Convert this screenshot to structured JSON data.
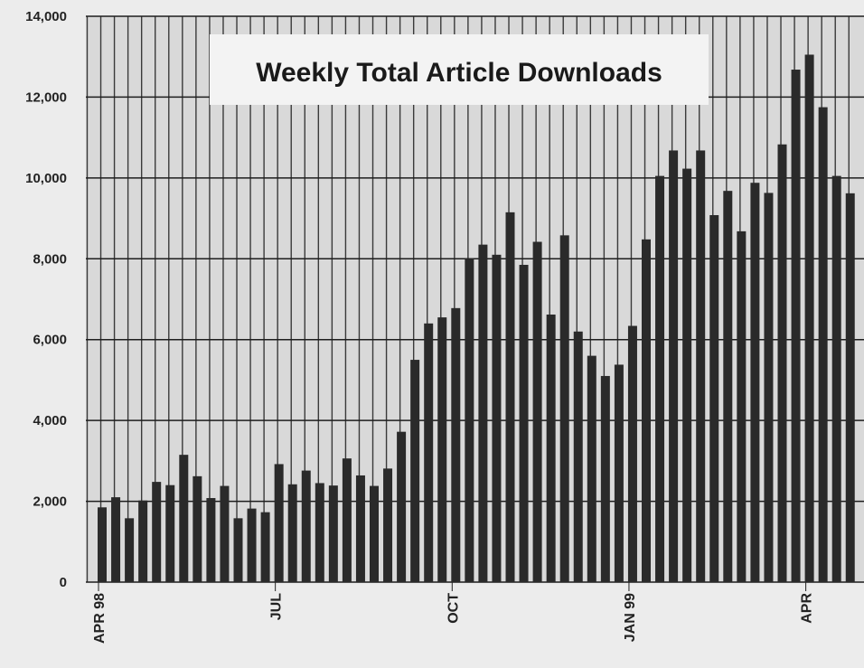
{
  "chart_data": {
    "type": "bar",
    "title": "Weekly Total Article Downloads",
    "xlabel": "",
    "ylabel": "",
    "ylim": [
      0,
      14000
    ],
    "yticks": [
      "0",
      "2,000",
      "4,000",
      "6,000",
      "8,000",
      "10,000",
      "12,000",
      "14,000"
    ],
    "xtick_labels": [
      {
        "label": "APR 98",
        "index": 0
      },
      {
        "label": "JUL",
        "index": 13
      },
      {
        "label": "OCT",
        "index": 26
      },
      {
        "label": "JAN 99",
        "index": 39
      },
      {
        "label": "APR",
        "index": 52
      }
    ],
    "grid": true,
    "legend": "none",
    "bar_color": "#2a2a2a",
    "values": [
      1850,
      2100,
      1580,
      2020,
      2480,
      2400,
      3150,
      2620,
      2080,
      2380,
      1580,
      1820,
      1730,
      2920,
      2420,
      2760,
      2450,
      2390,
      3060,
      2640,
      2380,
      2810,
      3720,
      5500,
      6400,
      6550,
      6780,
      8000,
      8350,
      8100,
      9150,
      7850,
      8420,
      6620,
      8580,
      6200,
      5600,
      5100,
      5380,
      6340,
      8480,
      10050,
      10680,
      10230,
      10680,
      9080,
      9680,
      8680,
      9880,
      9630,
      10830,
      12680,
      13050,
      11750,
      10050,
      9620
    ]
  }
}
